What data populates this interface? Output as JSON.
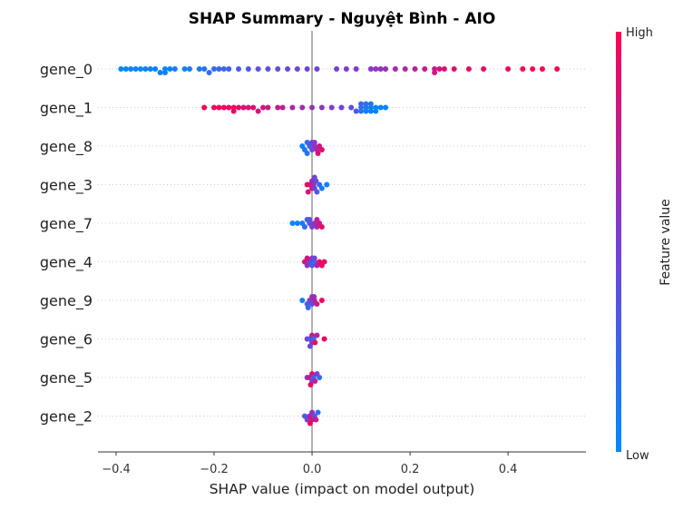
{
  "chart_data": {
    "type": "scatter",
    "subtype": "shap-beeswarm",
    "title": "SHAP Summary - Nguyệt Bình - AIO",
    "xlabel": "SHAP value (impact on model output)",
    "xlim": [
      -0.437,
      0.559
    ],
    "xticks": [
      -0.4,
      -0.2,
      0.0,
      0.2,
      0.4
    ],
    "xtick_labels": [
      "−0.4",
      "−0.2",
      "0.0",
      "0.2",
      "0.4"
    ],
    "colorbar": {
      "label": "Feature value",
      "high": "High",
      "low": "Low",
      "colors": [
        "#008bfb",
        "#7a3ed6",
        "#ff0051"
      ]
    },
    "features": [
      {
        "name": "gene_0",
        "points": [
          [
            -0.39,
            0.02
          ],
          [
            -0.38,
            0.03
          ],
          [
            -0.37,
            0.05
          ],
          [
            -0.36,
            0.04
          ],
          [
            -0.35,
            0.02
          ],
          [
            -0.34,
            0.06
          ],
          [
            -0.33,
            0.05
          ],
          [
            -0.32,
            0.03
          ],
          [
            -0.31,
            0.07
          ],
          [
            -0.3,
            0.04
          ],
          [
            -0.3,
            0.06
          ],
          [
            -0.29,
            0.05
          ],
          [
            -0.28,
            0.08
          ],
          [
            -0.26,
            0.1
          ],
          [
            -0.25,
            0.08
          ],
          [
            -0.23,
            0.12
          ],
          [
            -0.22,
            0.15
          ],
          [
            -0.21,
            0.18
          ],
          [
            -0.2,
            0.2
          ],
          [
            -0.19,
            0.22
          ],
          [
            -0.18,
            0.25
          ],
          [
            -0.17,
            0.28
          ],
          [
            -0.15,
            0.3
          ],
          [
            -0.13,
            0.33
          ],
          [
            -0.11,
            0.36
          ],
          [
            -0.09,
            0.38
          ],
          [
            -0.07,
            0.4
          ],
          [
            -0.05,
            0.42
          ],
          [
            -0.03,
            0.44
          ],
          [
            -0.01,
            0.46
          ],
          [
            0.01,
            0.47
          ],
          [
            0.05,
            0.5
          ],
          [
            0.07,
            0.52
          ],
          [
            0.09,
            0.54
          ],
          [
            0.12,
            0.56
          ],
          [
            0.13,
            0.58
          ],
          [
            0.14,
            0.6
          ],
          [
            0.15,
            0.62
          ],
          [
            0.17,
            0.65
          ],
          [
            0.19,
            0.68
          ],
          [
            0.21,
            0.72
          ],
          [
            0.23,
            0.76
          ],
          [
            0.25,
            0.8
          ],
          [
            0.25,
            0.82
          ],
          [
            0.26,
            0.85
          ],
          [
            0.27,
            0.86
          ],
          [
            0.29,
            0.88
          ],
          [
            0.32,
            0.9
          ],
          [
            0.35,
            0.93
          ],
          [
            0.4,
            0.95
          ],
          [
            0.43,
            0.96
          ],
          [
            0.45,
            0.97
          ],
          [
            0.47,
            0.98
          ],
          [
            0.5,
            0.99
          ]
        ]
      },
      {
        "name": "gene_1",
        "points": [
          [
            -0.22,
            0.98
          ],
          [
            -0.2,
            0.97
          ],
          [
            -0.19,
            0.96
          ],
          [
            -0.18,
            0.95
          ],
          [
            -0.17,
            0.95
          ],
          [
            -0.16,
            0.94
          ],
          [
            -0.16,
            0.93
          ],
          [
            -0.15,
            0.92
          ],
          [
            -0.14,
            0.9
          ],
          [
            -0.13,
            0.88
          ],
          [
            -0.12,
            0.86
          ],
          [
            -0.11,
            0.84
          ],
          [
            -0.1,
            0.82
          ],
          [
            -0.09,
            0.8
          ],
          [
            -0.07,
            0.76
          ],
          [
            -0.06,
            0.74
          ],
          [
            -0.04,
            0.7
          ],
          [
            -0.02,
            0.65
          ],
          [
            0.0,
            0.6
          ],
          [
            0.02,
            0.56
          ],
          [
            0.04,
            0.52
          ],
          [
            0.06,
            0.48
          ],
          [
            0.08,
            0.4
          ],
          [
            0.09,
            0.3
          ],
          [
            0.1,
            0.2
          ],
          [
            0.1,
            0.15
          ],
          [
            0.11,
            0.1
          ],
          [
            0.11,
            0.08
          ],
          [
            0.12,
            0.06
          ],
          [
            0.12,
            0.05
          ],
          [
            0.13,
            0.04
          ],
          [
            0.13,
            0.03
          ],
          [
            0.14,
            0.05
          ],
          [
            0.12,
            0.12
          ],
          [
            0.11,
            0.18
          ],
          [
            0.1,
            0.25
          ],
          [
            0.15,
            0.03
          ]
        ]
      },
      {
        "name": "gene_8",
        "points": [
          [
            -0.02,
            0.05
          ],
          [
            -0.015,
            0.1
          ],
          [
            -0.01,
            0.2
          ],
          [
            -0.005,
            0.3
          ],
          [
            0.0,
            0.4
          ],
          [
            0.0,
            0.5
          ],
          [
            0.005,
            0.6
          ],
          [
            0.01,
            0.7
          ],
          [
            0.015,
            0.8
          ],
          [
            0.02,
            0.9
          ],
          [
            -0.01,
            0.15
          ],
          [
            0.005,
            0.55
          ],
          [
            0.012,
            0.85
          ]
        ]
      },
      {
        "name": "gene_3",
        "points": [
          [
            -0.01,
            0.95
          ],
          [
            -0.005,
            0.9
          ],
          [
            0.0,
            0.8
          ],
          [
            0.0,
            0.7
          ],
          [
            0.003,
            0.6
          ],
          [
            0.005,
            0.5
          ],
          [
            0.008,
            0.4
          ],
          [
            0.01,
            0.3
          ],
          [
            0.015,
            0.2
          ],
          [
            0.02,
            0.1
          ],
          [
            0.03,
            0.05
          ],
          [
            -0.008,
            0.85
          ],
          [
            0.005,
            0.45
          ]
        ]
      },
      {
        "name": "gene_7",
        "points": [
          [
            -0.04,
            0.02
          ],
          [
            -0.03,
            0.05
          ],
          [
            -0.02,
            0.1
          ],
          [
            -0.015,
            0.2
          ],
          [
            -0.01,
            0.3
          ],
          [
            -0.005,
            0.4
          ],
          [
            0.0,
            0.5
          ],
          [
            0.005,
            0.6
          ],
          [
            0.01,
            0.7
          ],
          [
            0.015,
            0.8
          ],
          [
            0.02,
            0.9
          ],
          [
            -0.005,
            0.35
          ],
          [
            0.01,
            0.75
          ]
        ]
      },
      {
        "name": "gene_4",
        "points": [
          [
            -0.015,
            0.8
          ],
          [
            -0.01,
            0.6
          ],
          [
            -0.005,
            0.4
          ],
          [
            0.0,
            0.3
          ],
          [
            0.0,
            0.5
          ],
          [
            0.005,
            0.2
          ],
          [
            0.01,
            0.7
          ],
          [
            0.015,
            0.9
          ],
          [
            0.02,
            0.95
          ],
          [
            0.025,
            0.9
          ],
          [
            -0.01,
            0.85
          ],
          [
            0.005,
            0.45
          ]
        ]
      },
      {
        "name": "gene_9",
        "points": [
          [
            -0.02,
            0.1
          ],
          [
            -0.01,
            0.3
          ],
          [
            -0.005,
            0.5
          ],
          [
            0.0,
            0.4
          ],
          [
            0.0,
            0.6
          ],
          [
            0.005,
            0.7
          ],
          [
            0.01,
            0.8
          ],
          [
            0.02,
            0.95
          ],
          [
            -0.008,
            0.2
          ],
          [
            0.004,
            0.65
          ]
        ]
      },
      {
        "name": "gene_6",
        "points": [
          [
            -0.01,
            0.5
          ],
          [
            -0.005,
            0.3
          ],
          [
            0.0,
            0.6
          ],
          [
            0.0,
            0.8
          ],
          [
            0.003,
            0.2
          ],
          [
            0.006,
            0.9
          ],
          [
            0.01,
            0.7
          ],
          [
            0.025,
            0.95
          ],
          [
            -0.004,
            0.4
          ]
        ]
      },
      {
        "name": "gene_5",
        "points": [
          [
            -0.01,
            0.6
          ],
          [
            -0.005,
            0.8
          ],
          [
            0.0,
            0.4
          ],
          [
            0.0,
            0.9
          ],
          [
            0.003,
            0.3
          ],
          [
            0.006,
            0.7
          ],
          [
            0.01,
            0.5
          ],
          [
            0.015,
            0.2
          ],
          [
            -0.003,
            0.95
          ]
        ]
      },
      {
        "name": "gene_2",
        "points": [
          [
            -0.015,
            0.3
          ],
          [
            -0.01,
            0.5
          ],
          [
            -0.005,
            0.7
          ],
          [
            0.0,
            0.9
          ],
          [
            0.0,
            0.6
          ],
          [
            0.005,
            0.4
          ],
          [
            0.008,
            0.8
          ],
          [
            0.012,
            0.2
          ],
          [
            -0.004,
            0.95
          ]
        ]
      }
    ]
  }
}
